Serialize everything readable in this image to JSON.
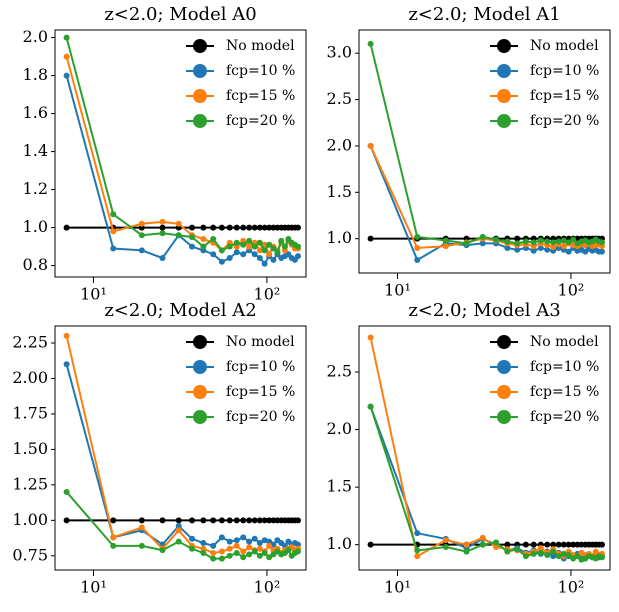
{
  "chart_data": [
    {
      "type": "line",
      "title": "z<2.0; Model A0",
      "xscale": "log",
      "legend": "upper right",
      "x": [
        7,
        13,
        19,
        25,
        31,
        37,
        43,
        49,
        55,
        61,
        67,
        73,
        79,
        85,
        91,
        97,
        103,
        109,
        115,
        121,
        127,
        133,
        139,
        145,
        151
      ],
      "xlim": [
        6,
        168
      ],
      "xticks": [
        {
          "value": 10,
          "label": "10¹"
        },
        {
          "value": 100,
          "label": "10²"
        }
      ],
      "ylim": [
        0.74,
        2.04
      ],
      "yticks": [
        0.8,
        {
          "value": 1.0,
          "label": "1.0"
        },
        1.2,
        1.4,
        1.6,
        1.8,
        {
          "value": 2.0,
          "label": "2.0"
        }
      ],
      "series": [
        {
          "name": "No model",
          "color": "#000000",
          "values": [
            1,
            1,
            1,
            1,
            1,
            1,
            1,
            1,
            1,
            1,
            1,
            1,
            1,
            1,
            1,
            1,
            1,
            1,
            1,
            1,
            1,
            1,
            1,
            1,
            1
          ]
        },
        {
          "name": "fcp=10 %",
          "color": "#1f77b4",
          "values": [
            1.8,
            0.89,
            0.88,
            0.84,
            0.96,
            0.9,
            0.88,
            0.86,
            0.82,
            0.84,
            0.87,
            0.86,
            0.88,
            0.86,
            0.84,
            0.81,
            0.85,
            0.83,
            0.86,
            0.84,
            0.85,
            0.86,
            0.84,
            0.83,
            0.85
          ]
        },
        {
          "name": "fcp=15 %",
          "color": "#ff7f0e",
          "values": [
            1.9,
            0.98,
            1.02,
            1.03,
            1.02,
            0.96,
            0.94,
            0.92,
            0.88,
            0.92,
            0.9,
            0.93,
            0.9,
            0.92,
            0.88,
            0.91,
            0.86,
            0.9,
            0.88,
            0.92,
            0.88,
            0.93,
            0.91,
            0.89,
            0.89
          ]
        },
        {
          "name": "fcp=20 %",
          "color": "#2ca02c",
          "values": [
            2.0,
            1.07,
            0.96,
            0.97,
            0.96,
            0.95,
            0.9,
            0.94,
            0.88,
            0.9,
            0.92,
            0.91,
            0.93,
            0.9,
            0.92,
            0.88,
            0.91,
            0.89,
            0.87,
            0.93,
            0.9,
            0.94,
            0.92,
            0.91,
            0.9
          ]
        }
      ]
    },
    {
      "type": "line",
      "title": "z<2.0; Model A1",
      "xscale": "log",
      "legend": "upper right",
      "x": [
        7,
        13,
        19,
        25,
        31,
        37,
        43,
        49,
        55,
        61,
        67,
        73,
        79,
        85,
        91,
        97,
        103,
        109,
        115,
        121,
        127,
        133,
        139,
        145,
        151
      ],
      "xlim": [
        6,
        168
      ],
      "xticks": [
        {
          "value": 10,
          "label": "10¹"
        },
        {
          "value": 100,
          "label": "10²"
        }
      ],
      "ylim": [
        0.63,
        3.25
      ],
      "yticks": [
        {
          "value": 1.0,
          "label": "1.0"
        },
        1.5,
        {
          "value": 2.0,
          "label": "2.0"
        },
        2.5,
        {
          "value": 3.0,
          "label": "3.0"
        }
      ],
      "series": [
        {
          "name": "No model",
          "color": "#000000",
          "values": [
            1,
            1,
            1,
            1,
            1,
            1,
            1,
            1,
            1,
            1,
            1,
            1,
            1,
            1,
            1,
            1,
            1,
            1,
            1,
            1,
            1,
            1,
            1,
            1,
            1
          ]
        },
        {
          "name": "fcp=10 %",
          "color": "#1f77b4",
          "values": [
            2.0,
            0.77,
            0.95,
            0.93,
            0.95,
            0.95,
            0.9,
            0.88,
            0.9,
            0.87,
            0.9,
            0.88,
            0.87,
            0.9,
            0.88,
            0.86,
            0.9,
            0.87,
            0.88,
            0.86,
            0.89,
            0.87,
            0.88,
            0.86,
            0.86
          ]
        },
        {
          "name": "fcp=15 %",
          "color": "#ff7f0e",
          "values": [
            2.0,
            0.9,
            0.92,
            0.96,
            1.0,
            0.98,
            0.95,
            0.93,
            0.94,
            0.92,
            0.95,
            0.93,
            0.91,
            0.94,
            0.92,
            0.95,
            0.93,
            0.92,
            0.94,
            0.93,
            0.95,
            0.92,
            0.93,
            0.94,
            0.92
          ]
        },
        {
          "name": "fcp=20 %",
          "color": "#2ca02c",
          "values": [
            3.1,
            1.02,
            0.98,
            0.95,
            1.02,
            0.99,
            0.97,
            0.95,
            0.97,
            0.96,
            0.98,
            0.97,
            0.96,
            0.97,
            0.98,
            0.96,
            0.99,
            0.95,
            0.97,
            0.98,
            0.96,
            0.97,
            0.99,
            0.97,
            0.96
          ]
        }
      ]
    },
    {
      "type": "line",
      "title": "z<2.0; Model A2",
      "xscale": "log",
      "legend": "upper right",
      "x": [
        7,
        13,
        19,
        25,
        31,
        37,
        43,
        49,
        55,
        61,
        67,
        73,
        79,
        85,
        91,
        97,
        103,
        109,
        115,
        121,
        127,
        133,
        139,
        145,
        151
      ],
      "xlim": [
        6,
        168
      ],
      "xticks": [
        {
          "value": 10,
          "label": "10¹"
        },
        {
          "value": 100,
          "label": "10²"
        }
      ],
      "ylim": [
        0.65,
        2.37
      ],
      "yticks": [
        0.75,
        {
          "value": 1.0,
          "label": "1.00"
        },
        1.25,
        {
          "value": 1.5,
          "label": "1.50"
        },
        1.75,
        {
          "value": 2.0,
          "label": "2.00"
        },
        2.25
      ],
      "series": [
        {
          "name": "No model",
          "color": "#000000",
          "values": [
            1,
            1,
            1,
            1,
            1,
            1,
            1,
            1,
            1,
            1,
            1,
            1,
            1,
            1,
            1,
            1,
            1,
            1,
            1,
            1,
            1,
            1,
            1,
            1,
            1
          ]
        },
        {
          "name": "fcp=10 %",
          "color": "#1f77b4",
          "values": [
            2.1,
            0.88,
            0.93,
            0.83,
            0.96,
            0.87,
            0.84,
            0.82,
            0.88,
            0.85,
            0.86,
            0.88,
            0.85,
            0.87,
            0.84,
            0.86,
            0.85,
            0.83,
            0.86,
            0.84,
            0.82,
            0.85,
            0.83,
            0.84,
            0.83
          ]
        },
        {
          "name": "fcp=15 %",
          "color": "#ff7f0e",
          "values": [
            2.3,
            0.88,
            0.95,
            0.8,
            0.93,
            0.82,
            0.8,
            0.77,
            0.78,
            0.8,
            0.82,
            0.78,
            0.81,
            0.79,
            0.8,
            0.78,
            0.82,
            0.79,
            0.8,
            0.77,
            0.79,
            0.8,
            0.81,
            0.79,
            0.8
          ]
        },
        {
          "name": "fcp=20 %",
          "color": "#2ca02c",
          "values": [
            1.2,
            0.82,
            0.82,
            0.79,
            0.85,
            0.8,
            0.77,
            0.73,
            0.73,
            0.75,
            0.77,
            0.74,
            0.76,
            0.78,
            0.75,
            0.77,
            0.74,
            0.76,
            0.78,
            0.76,
            0.77,
            0.79,
            0.75,
            0.77,
            0.78
          ]
        }
      ]
    },
    {
      "type": "line",
      "title": "z<2.0; Model A3",
      "xscale": "log",
      "legend": "upper right",
      "x": [
        7,
        13,
        19,
        25,
        31,
        37,
        43,
        49,
        55,
        61,
        67,
        73,
        79,
        85,
        91,
        97,
        103,
        109,
        115,
        121,
        127,
        133,
        139,
        145,
        151
      ],
      "xlim": [
        6,
        168
      ],
      "xticks": [
        {
          "value": 10,
          "label": "10¹"
        },
        {
          "value": 100,
          "label": "10²"
        }
      ],
      "ylim": [
        0.78,
        2.9
      ],
      "yticks": [
        {
          "value": 1.0,
          "label": "1.0"
        },
        1.5,
        {
          "value": 2.0,
          "label": "2.0"
        },
        2.5
      ],
      "series": [
        {
          "name": "No model",
          "color": "#000000",
          "values": [
            1,
            1,
            1,
            1,
            1,
            1,
            1,
            1,
            1,
            1,
            1,
            1,
            1,
            1,
            1,
            1,
            1,
            1,
            1,
            1,
            1,
            1,
            1,
            1,
            1
          ]
        },
        {
          "name": "fcp=10 %",
          "color": "#1f77b4",
          "values": [
            2.2,
            1.1,
            1.05,
            0.97,
            1.05,
            1.0,
            0.95,
            0.97,
            0.93,
            0.95,
            0.92,
            0.94,
            0.9,
            0.93,
            0.88,
            0.9,
            0.89,
            0.92,
            0.9,
            0.88,
            0.91,
            0.9,
            0.92,
            0.89,
            0.91
          ]
        },
        {
          "name": "fcp=15 %",
          "color": "#ff7f0e",
          "values": [
            2.8,
            0.9,
            1.04,
            1.0,
            1.06,
            0.98,
            0.96,
            0.95,
            0.92,
            0.94,
            0.97,
            0.93,
            0.96,
            0.92,
            0.9,
            0.94,
            0.91,
            0.9,
            0.93,
            0.91,
            0.92,
            0.9,
            0.94,
            0.91,
            0.92
          ]
        },
        {
          "name": "fcp=20 %",
          "color": "#2ca02c",
          "values": [
            2.2,
            0.95,
            0.98,
            0.94,
            1.0,
            1.02,
            0.94,
            0.96,
            0.9,
            0.92,
            0.93,
            0.91,
            0.94,
            0.9,
            0.92,
            0.91,
            0.88,
            0.9,
            0.87,
            0.88,
            0.9,
            0.89,
            0.88,
            0.9,
            0.89
          ]
        }
      ]
    }
  ]
}
